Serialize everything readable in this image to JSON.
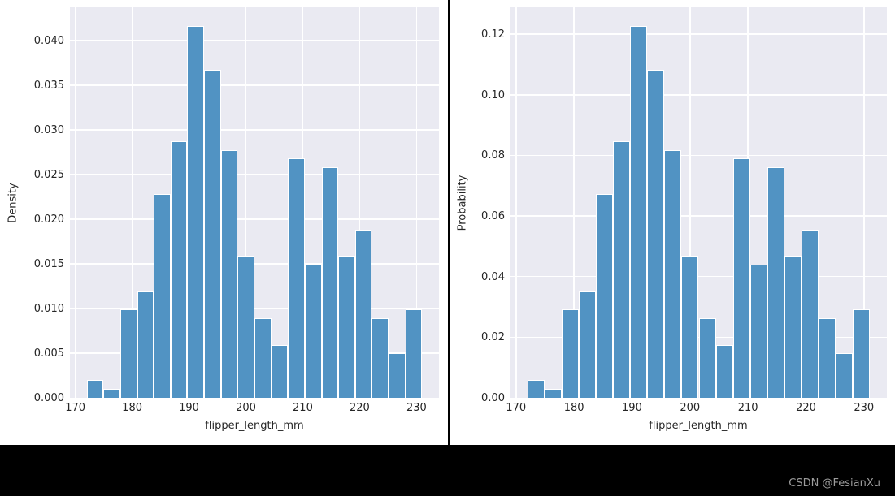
{
  "figure": {
    "watermark": "CSDN @FesianXu"
  },
  "colors": {
    "bar_fill": "#5193c3",
    "bar_edge": "#ffffff",
    "axes_background": "#eaeaf2",
    "gridline": "#ffffff",
    "text": "#262626",
    "frame_black": "#000000",
    "watermark_text": "#9c9c9c",
    "figure_background": "#ffffff"
  },
  "chart_data": [
    {
      "type": "bar",
      "chart_kind": "histogram",
      "title": "",
      "xlabel": "flipper_length_mm",
      "ylabel": "Density",
      "bin_start": 172,
      "bin_width": 2.95,
      "n_bins": 20,
      "xlim": [
        169.05,
        233.95
      ],
      "ylim": [
        0,
        0.0437
      ],
      "grid": true,
      "legend": false,
      "xtick_values": [
        170,
        180,
        190,
        200,
        210,
        220,
        230
      ],
      "xtick_labels": [
        "170",
        "180",
        "190",
        "200",
        "210",
        "220",
        "230"
      ],
      "ytick_values": [
        0,
        0.005,
        0.01,
        0.015,
        0.02,
        0.025,
        0.03,
        0.035,
        0.04
      ],
      "ytick_labels": [
        "0.000",
        "0.005",
        "0.010",
        "0.015",
        "0.020",
        "0.025",
        "0.030",
        "0.035",
        "0.040"
      ],
      "values": [
        0.00198,
        0.00099,
        0.00991,
        0.01189,
        0.0228,
        0.02874,
        0.04163,
        0.03667,
        0.02775,
        0.01586,
        0.00892,
        0.00595,
        0.02676,
        0.01487,
        0.02577,
        0.01586,
        0.01883,
        0.00892,
        0.00496,
        0.00991
      ]
    },
    {
      "type": "bar",
      "chart_kind": "histogram",
      "title": "",
      "xlabel": "flipper_length_mm",
      "ylabel": "Probability",
      "bin_start": 172,
      "bin_width": 2.95,
      "n_bins": 20,
      "xlim": [
        169.05,
        233.95
      ],
      "ylim": [
        0,
        0.1289
      ],
      "grid": true,
      "legend": false,
      "xtick_values": [
        170,
        180,
        190,
        200,
        210,
        220,
        230
      ],
      "xtick_labels": [
        "170",
        "180",
        "190",
        "200",
        "210",
        "220",
        "230"
      ],
      "ytick_values": [
        0,
        0.02,
        0.04,
        0.06,
        0.08,
        0.1,
        0.12
      ],
      "ytick_labels": [
        "0.00",
        "0.02",
        "0.04",
        "0.06",
        "0.08",
        "0.10",
        "0.12"
      ],
      "values": [
        0.00585,
        0.00292,
        0.02924,
        0.03509,
        0.06725,
        0.0848,
        0.12281,
        0.10819,
        0.08187,
        0.04678,
        0.02632,
        0.01754,
        0.07895,
        0.04386,
        0.07602,
        0.04678,
        0.05556,
        0.02632,
        0.01462,
        0.02924
      ]
    }
  ]
}
